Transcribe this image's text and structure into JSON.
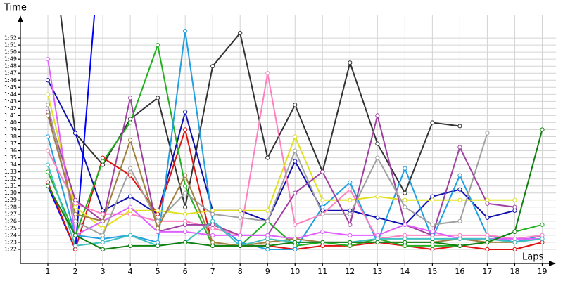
{
  "chart_data": {
    "type": "line",
    "y_label": "Time",
    "x_label": "Laps",
    "x": [
      1,
      2,
      3,
      4,
      5,
      6,
      7,
      8,
      9,
      10,
      11,
      12,
      13,
      14,
      15,
      16,
      17,
      18,
      19
    ],
    "xlim": [
      0,
      19.5
    ],
    "xticks": [
      1,
      2,
      3,
      4,
      5,
      6,
      7,
      8,
      9,
      10,
      11,
      12,
      13,
      14,
      15,
      16,
      17,
      18,
      19
    ],
    "ylim": [
      80,
      115.2
    ],
    "yticks": [
      {
        "value": 82,
        "label": "1:22"
      },
      {
        "value": 83,
        "label": "1:23"
      },
      {
        "value": 84,
        "label": "1:24"
      },
      {
        "value": 85,
        "label": "1:25"
      },
      {
        "value": 86,
        "label": "1:26"
      },
      {
        "value": 87,
        "label": "1:27"
      },
      {
        "value": 88,
        "label": "1:28"
      },
      {
        "value": 89,
        "label": "1:29"
      },
      {
        "value": 90,
        "label": "1:30"
      },
      {
        "value": 91,
        "label": "1:31"
      },
      {
        "value": 92,
        "label": "1:32"
      },
      {
        "value": 93,
        "label": "1:33"
      },
      {
        "value": 94,
        "label": "1:34"
      },
      {
        "value": 95,
        "label": "1:35"
      },
      {
        "value": 96,
        "label": "1:36"
      },
      {
        "value": 97,
        "label": "1:37"
      },
      {
        "value": 98,
        "label": "1:38"
      },
      {
        "value": 99,
        "label": "1:39"
      },
      {
        "value": 100,
        "label": "1:40"
      },
      {
        "value": 101,
        "label": "1:41"
      },
      {
        "value": 102,
        "label": "1:42"
      },
      {
        "value": 103,
        "label": "1:43"
      },
      {
        "value": 104,
        "label": "1:44"
      },
      {
        "value": 105,
        "label": "1:45"
      },
      {
        "value": 106,
        "label": "1:46"
      },
      {
        "value": 107,
        "label": "1:47"
      },
      {
        "value": 108,
        "label": "1:48"
      },
      {
        "value": 109,
        "label": "1:49"
      },
      {
        "value": 110,
        "label": "1:50"
      },
      {
        "value": 111,
        "label": "1:51"
      },
      {
        "value": 112,
        "label": "1:52"
      }
    ],
    "grid": true,
    "series": [
      {
        "color": "#333333",
        "values": [
          130,
          98.5,
          94,
          100.5,
          103.5,
          88,
          108,
          112.7,
          95,
          102.5,
          93,
          108.5,
          97,
          90,
          100,
          99.5,
          null,
          null,
          null
        ]
      },
      {
        "color": "#1010b0",
        "values": [
          106,
          98.5,
          87.5,
          89.5,
          87,
          101.5,
          87.5,
          87.5,
          86,
          94.5,
          87.5,
          87.5,
          86.5,
          85.5,
          89.5,
          90.5,
          86.5,
          87.5,
          null
        ]
      },
      {
        "color": "#0000ff",
        "values": [
          91,
          82,
          130,
          null,
          null,
          null,
          null,
          null,
          null,
          null,
          null,
          null,
          null,
          null,
          null,
          null,
          null,
          null,
          null
        ]
      },
      {
        "color": "#e01010",
        "values": [
          91.5,
          82,
          95,
          92.5,
          87,
          99,
          82.5,
          82.5,
          82.5,
          82,
          82.5,
          82.5,
          83,
          82.5,
          82,
          82.5,
          82,
          82,
          83
        ]
      },
      {
        "color": "#20b020",
        "values": [
          93,
          84,
          94.5,
          100,
          111,
          91,
          82.5,
          82.5,
          86,
          82.5,
          83,
          82.5,
          83.5,
          82.5,
          82.5,
          82.5,
          83,
          84.5,
          85.5
        ]
      },
      {
        "color": "#20a0e0",
        "values": [
          98,
          84,
          83.5,
          84,
          83,
          113,
          86,
          83,
          82,
          82,
          88,
          91.5,
          83,
          93.5,
          83.5,
          92.5,
          84,
          83,
          84
        ]
      },
      {
        "color": "#ff80c0",
        "values": [
          96,
          88.5,
          87,
          87,
          86,
          86,
          85,
          84,
          107,
          85.5,
          87,
          90.5,
          83.5,
          84,
          84,
          84,
          84,
          83.5,
          84
        ]
      },
      {
        "color": "#e0e020",
        "values": [
          104,
          88,
          85,
          87.5,
          87.5,
          87,
          87.5,
          87.5,
          87.5,
          98,
          89,
          89,
          89.5,
          89,
          89,
          89,
          89,
          89,
          null
        ]
      },
      {
        "color": "#a040a0",
        "values": [
          101.5,
          89,
          86,
          103.5,
          84.5,
          85.5,
          85.5,
          84,
          84,
          90,
          93,
          85.5,
          101,
          85.5,
          84,
          96.5,
          88.5,
          88,
          null
        ]
      },
      {
        "color": "#e060ff",
        "values": [
          109,
          84,
          86,
          88,
          84.5,
          84.5,
          84,
          84,
          84,
          83.5,
          84.5,
          84,
          84,
          85.5,
          84.5,
          83.5,
          83.5,
          83.5,
          83.5
        ]
      },
      {
        "color": "#a0a0a0",
        "values": [
          102.5,
          86,
          84,
          93.5,
          86,
          90,
          87,
          86.5,
          86,
          96,
          87,
          87,
          95,
          88,
          85.5,
          86,
          98.5,
          null,
          null
        ]
      },
      {
        "color": "#a08040",
        "values": [
          101,
          87,
          86,
          97.5,
          85,
          92.5,
          83,
          82.5,
          83,
          83.5,
          83,
          83,
          83,
          83,
          83,
          83.5,
          83,
          83,
          null
        ]
      },
      {
        "color": "#40c0c0",
        "values": [
          94,
          82.5,
          83,
          84,
          82.5,
          83,
          86,
          82.5,
          83.5,
          83,
          83,
          83,
          83.5,
          83.5,
          83.5,
          83.5,
          83.5,
          83,
          83.5
        ]
      },
      {
        "color": "#108010",
        "values": [
          91,
          84,
          82,
          82.5,
          82.5,
          83,
          82.5,
          82.5,
          82.5,
          83,
          83,
          83,
          83,
          83,
          83,
          82.5,
          83,
          84.5,
          99
        ]
      }
    ]
  }
}
